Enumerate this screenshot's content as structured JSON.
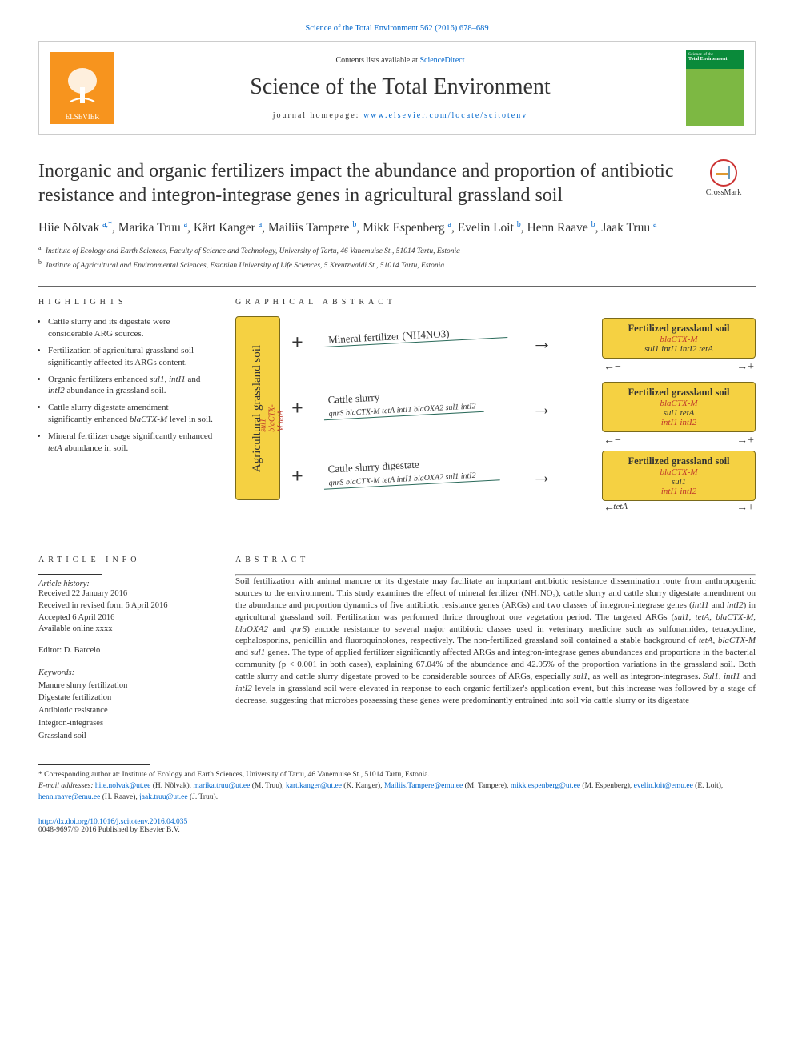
{
  "citation": "Science of the Total Environment 562 (2016) 678–689",
  "header": {
    "contents_prefix": "Contents lists available at ",
    "contents_link": "ScienceDirect",
    "journal_name": "Science of the Total Environment",
    "homepage_prefix": "journal homepage: ",
    "homepage_link": "www.elsevier.com/locate/scitotenv",
    "publisher_label": "ELSEVIER",
    "cover_text_top": "Science of the",
    "cover_text_main": "Total Environment"
  },
  "title": "Inorganic and organic fertilizers impact the abundance and proportion of antibiotic resistance and integron-integrase genes in agricultural grassland soil",
  "crossmark_label": "CrossMark",
  "authors_html": "Hiie Nõlvak <sup>a,*</sup>, Marika Truu <sup>a</sup>, Kärt Kanger <sup>a</sup>, Mailiis Tampere <sup>b</sup>, Mikk Espenberg <sup>a</sup>, Evelin Loit <sup>b</sup>, Henn Raave <sup>b</sup>, Jaak Truu <sup>a</sup>",
  "affiliations": [
    {
      "sup": "a",
      "text": "Institute of Ecology and Earth Sciences, Faculty of Science and Technology, University of Tartu, 46 Vanemuise St., 51014 Tartu, Estonia"
    },
    {
      "sup": "b",
      "text": "Institute of Agricultural and Environmental Sciences, Estonian University of Life Sciences, 5 Kreutzwaldi St., 51014 Tartu, Estonia"
    }
  ],
  "highlights": {
    "heading": "HIGHLIGHTS",
    "items": [
      "Cattle slurry and its digestate were considerable ARG sources.",
      "Fertilization of agricultural grassland soil significantly affected its ARGs content.",
      "Organic fertilizers enhanced <em>sul1</em>, <em>intI1</em> and <em>intI2</em> abundance in grassland soil.",
      "Cattle slurry digestate amendment significantly enhanced <em>blaCTX-M</em> level in soil.",
      "Mineral fertilizer usage significantly enhanced <em>tetA</em> abundance in soil."
    ]
  },
  "graphical": {
    "heading": "GRAPHICAL ABSTRACT",
    "ybox_label": "Agricultural  grassland  soil",
    "ybox_genes": "sul1 blaCTX-M  tetA",
    "fertilizers": [
      {
        "label": "Mineral fertilizer (NH4NO3)",
        "sub": ""
      },
      {
        "label": "Cattle slurry",
        "sub": "qnrS blaCTX-M tetA intI1\nblaOXA2 sul1 intI2"
      },
      {
        "label": "Cattle slurry digestate",
        "sub": "qnrS blaCTX-M tetA intI1\nblaOXA2 sul1 intI2"
      }
    ],
    "results": [
      {
        "header": "Fertilized grassland soil",
        "genes_red": "blaCTX-M",
        "genes_black": "sul1 intI1 intI2   tetA",
        "bottom": [
          "−",
          "+"
        ],
        "bottom_gene": ""
      },
      {
        "header": "Fertilized grassland soil",
        "genes_red": "blaCTX-M",
        "genes_black": "sul1 tetA",
        "genes_red2": "intI1 intI2",
        "bottom": [
          "−",
          "+"
        ],
        "bottom_gene": ""
      },
      {
        "header": "Fertilized grassland soil",
        "genes_red": "blaCTX-M",
        "genes_black2": "sul1",
        "genes_red2": "intI1 intI2",
        "bottom": [
          "−",
          "+"
        ],
        "bottom_gene": "tetA"
      }
    ]
  },
  "article_info": {
    "heading": "ARTICLE INFO",
    "history_label": "Article history:",
    "history": [
      "Received 22 January 2016",
      "Received in revised form 6 April 2016",
      "Accepted 6 April 2016",
      "Available online xxxx"
    ],
    "editor_label": "Editor: D. Barcelo",
    "keywords_label": "Keywords:",
    "keywords": [
      "Manure slurry fertilization",
      "Digestate fertilization",
      "Antibiotic resistance",
      "Integron-integrases",
      "Grassland soil"
    ]
  },
  "abstract": {
    "heading": "ABSTRACT",
    "text": "Soil fertilization with animal manure or its digestate may facilitate an important antibiotic resistance dissemination route from anthropogenic sources to the environment. This study examines the effect of mineral fertilizer (NH₄NO₃), cattle slurry and cattle slurry digestate amendment on the abundance and proportion dynamics of five antibiotic resistance genes (ARGs) and two classes of integron-integrase genes (intI1 and intI2) in agricultural grassland soil. Fertilization was performed thrice throughout one vegetation period. The targeted ARGs (sul1, tetA, blaCTX-M, blaOXA2 and qnrS) encode resistance to several major antibiotic classes used in veterinary medicine such as sulfonamides, tetracycline, cephalosporins, penicillin and fluoroquinolones, respectively. The non-fertilized grassland soil contained a stable background of tetA, blaCTX-M and sul1 genes. The type of applied fertilizer significantly affected ARGs and integron-integrase genes abundances and proportions in the bacterial community (p < 0.001 in both cases), explaining 67.04% of the abundance and 42.95% of the proportion variations in the grassland soil. Both cattle slurry and cattle slurry digestate proved to be considerable sources of ARGs, especially sul1, as well as integron-integrases. Sul1, intI1 and intI2 levels in grassland soil were elevated in response to each organic fertilizer's application event, but this increase was followed by a stage of decrease, suggesting that microbes possessing these genes were predominantly entrained into soil via cattle slurry or its digestate"
  },
  "footnote": {
    "corr": "* Corresponding author at: Institute of Ecology and Earth Sciences, University of Tartu, 46 Vanemuise St., 51014 Tartu, Estonia.",
    "emails_label": "E-mail addresses:",
    "emails": [
      {
        "addr": "hiie.nolvak@ut.ee",
        "name": "(H. Nõlvak)"
      },
      {
        "addr": "marika.truu@ut.ee",
        "name": "(M. Truu)"
      },
      {
        "addr": "kart.kanger@ut.ee",
        "name": "(K. Kanger)"
      },
      {
        "addr": "Mailiis.Tampere@emu.ee",
        "name": "(M. Tampere)"
      },
      {
        "addr": "mikk.espenberg@ut.ee",
        "name": "(M. Espenberg)"
      },
      {
        "addr": "evelin.loit@emu.ee",
        "name": "(E. Loit)"
      },
      {
        "addr": "henn.raave@emu.ee",
        "name": "(H. Raave)"
      },
      {
        "addr": "jaak.truu@ut.ee",
        "name": "(J. Truu)."
      }
    ]
  },
  "doi": {
    "link": "http://dx.doi.org/10.1016/j.scitotenv.2016.04.035",
    "issn_line": "0048-9697/© 2016 Published by Elsevier B.V."
  },
  "colors": {
    "link": "#0066cc",
    "elsevier_orange": "#f7941e",
    "yellow_box": "#f5d142",
    "yellow_border": "#7a6a1a",
    "teal_underline": "#2a6a5a",
    "red_gene": "#c0392b"
  }
}
